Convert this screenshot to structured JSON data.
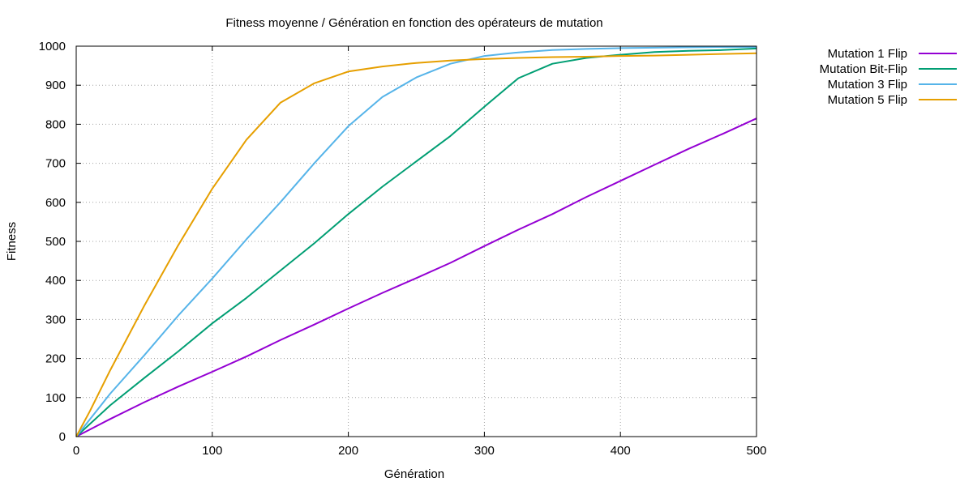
{
  "chart_data": {
    "type": "line",
    "title": "Fitness moyenne / Génération en fonction des opérateurs de mutation",
    "xlabel": "Génération",
    "ylabel": "Fitness",
    "xlim": [
      0,
      500
    ],
    "ylim": [
      0,
      1000
    ],
    "xticks": [
      0,
      100,
      200,
      300,
      400,
      500
    ],
    "yticks": [
      0,
      100,
      200,
      300,
      400,
      500,
      600,
      700,
      800,
      900,
      1000
    ],
    "xtick_labels": [
      "0",
      "100",
      "200",
      "300",
      "400",
      "500"
    ],
    "ytick_labels": [
      "0",
      "100",
      "200",
      "300",
      "400",
      "500",
      "600",
      "700",
      "800",
      "900",
      "1000"
    ],
    "grid": true,
    "legend_position": "top-right-outside",
    "series": [
      {
        "name": "Mutation 1 Flip",
        "color": "#9400d3",
        "x": [
          0,
          25,
          50,
          75,
          100,
          125,
          150,
          175,
          200,
          225,
          250,
          275,
          300,
          325,
          350,
          375,
          400,
          425,
          450,
          475,
          500
        ],
        "y": [
          0,
          45,
          88,
          128,
          166,
          205,
          247,
          287,
          328,
          368,
          406,
          445,
          488,
          530,
          570,
          614,
          655,
          696,
          737,
          775,
          815
        ]
      },
      {
        "name": "Mutation Bit-Flip",
        "color": "#009e73",
        "x": [
          0,
          25,
          50,
          75,
          100,
          125,
          150,
          175,
          200,
          225,
          250,
          275,
          300,
          325,
          350,
          375,
          400,
          425,
          450,
          475,
          500
        ],
        "y": [
          0,
          80,
          150,
          218,
          290,
          355,
          425,
          495,
          570,
          640,
          705,
          770,
          845,
          918,
          955,
          970,
          978,
          985,
          988,
          990,
          994
        ]
      },
      {
        "name": "Mutation 3 Flip",
        "color": "#56b4e9",
        "x": [
          0,
          25,
          50,
          75,
          100,
          125,
          150,
          175,
          200,
          225,
          250,
          275,
          300,
          325,
          350,
          375,
          400,
          425,
          450,
          475,
          500
        ],
        "y": [
          0,
          110,
          208,
          310,
          405,
          505,
          600,
          700,
          795,
          870,
          920,
          955,
          975,
          984,
          990,
          993,
          995,
          996,
          997,
          998,
          998
        ]
      },
      {
        "name": "Mutation 5 Flip",
        "color": "#e69f00",
        "x": [
          0,
          10,
          25,
          50,
          75,
          100,
          125,
          150,
          175,
          200,
          225,
          250,
          275,
          300,
          325,
          350,
          375,
          400,
          425,
          450,
          475,
          500
        ],
        "y": [
          0,
          65,
          170,
          335,
          490,
          635,
          760,
          855,
          905,
          935,
          948,
          957,
          963,
          967,
          970,
          972,
          973,
          975,
          976,
          978,
          980,
          982
        ]
      }
    ]
  }
}
